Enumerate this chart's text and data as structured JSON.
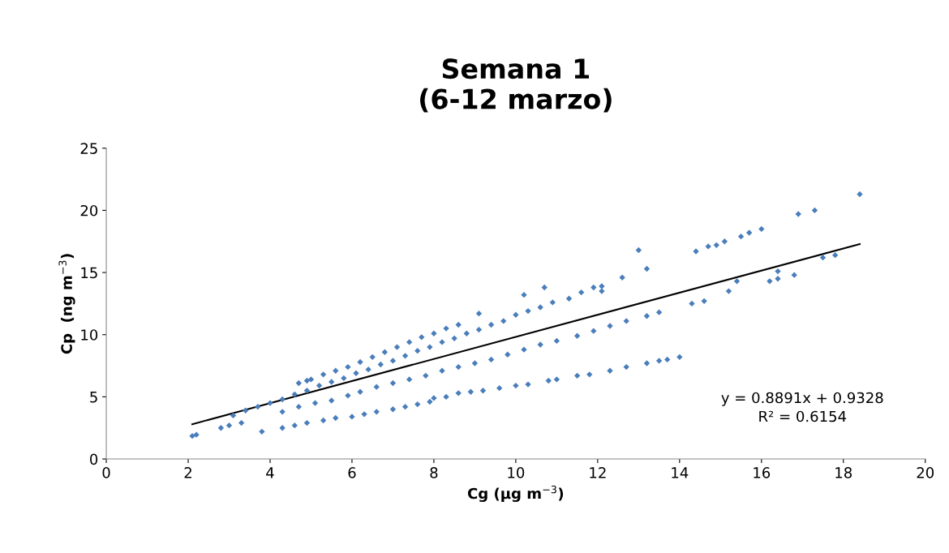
{
  "chart_data": {
    "type": "scatter",
    "title": "Semana 1\n(6-12 marzo)",
    "xlabel": "Cg (μg m$^{−3}$)",
    "ylabel": "Cp  (ng m$^{−3}$)",
    "xlim": [
      0,
      20
    ],
    "xticks": [
      0,
      2,
      4,
      6,
      8,
      10,
      12,
      14,
      16,
      18,
      20
    ],
    "ylim": [
      0,
      25
    ],
    "yticks": [
      0,
      5,
      10,
      15,
      20,
      25
    ],
    "grid": false,
    "marker": "diamond",
    "annotations": [
      "y = 0.8891x + 0.9328",
      "R² = 0.6154"
    ],
    "series": [
      {
        "color": "#4a7ebb",
        "x": [
          4.7,
          4.9,
          5.0,
          5.3,
          5.6,
          5.9,
          6.2,
          6.5,
          6.8,
          7.1,
          7.4,
          7.7,
          8.0,
          8.3,
          8.6,
          9.1,
          10.2,
          10.7,
          13.0,
          14.4,
          14.7,
          14.9,
          15.1,
          15.5,
          15.7,
          16.0,
          16.9,
          17.3,
          18.4
        ],
        "values": [
          6.1,
          6.3,
          6.4,
          6.8,
          7.1,
          7.4,
          7.8,
          8.2,
          8.6,
          9.0,
          9.4,
          9.8,
          10.1,
          10.5,
          10.8,
          11.7,
          13.2,
          13.8,
          16.8,
          16.7,
          17.1,
          17.2,
          17.5,
          17.9,
          18.2,
          18.5,
          19.7,
          20.0,
          21.3
        ]
      },
      {
        "color": "#4a7ebb",
        "x": [
          3.4,
          3.7,
          4.0,
          4.3,
          4.6,
          4.9,
          5.2,
          5.5,
          5.8,
          6.1,
          6.4,
          6.7,
          7.0,
          7.3,
          7.6,
          7.9,
          8.2,
          8.5,
          8.8,
          9.1,
          9.4,
          9.7,
          10.0,
          10.3,
          10.6,
          10.9,
          11.3,
          11.6,
          11.9,
          12.1,
          12.1,
          12.6,
          13.2
        ],
        "values": [
          3.9,
          4.2,
          4.5,
          4.8,
          5.2,
          5.5,
          5.9,
          6.2,
          6.5,
          6.9,
          7.2,
          7.6,
          7.9,
          8.3,
          8.7,
          9.0,
          9.4,
          9.7,
          10.1,
          10.4,
          10.8,
          11.1,
          11.6,
          11.9,
          12.2,
          12.6,
          12.9,
          13.4,
          13.8,
          13.9,
          13.5,
          14.6,
          15.3
        ]
      },
      {
        "color": "#4a7ebb",
        "x": [
          2.1,
          2.2,
          2.8,
          3.0,
          3.3,
          3.1,
          4.3,
          4.7,
          5.1,
          5.5,
          5.9,
          6.2,
          6.6,
          7.0,
          7.4,
          7.8,
          8.2,
          8.6,
          9.0,
          9.4,
          9.8,
          10.2,
          10.6,
          11.0,
          11.5,
          11.9,
          12.3,
          12.7,
          13.2,
          13.5,
          14.3,
          14.6,
          15.2,
          15.4,
          16.2,
          16.4,
          16.4,
          16.8,
          17.5,
          17.8
        ],
        "values": [
          1.85,
          1.95,
          2.5,
          2.7,
          2.9,
          3.5,
          3.8,
          4.2,
          4.5,
          4.7,
          5.1,
          5.4,
          5.8,
          6.1,
          6.4,
          6.7,
          7.1,
          7.4,
          7.7,
          8.0,
          8.4,
          8.8,
          9.2,
          9.5,
          9.9,
          10.3,
          10.7,
          11.1,
          11.5,
          11.8,
          12.5,
          12.7,
          13.5,
          14.3,
          14.3,
          14.5,
          15.1,
          14.8,
          16.2,
          16.4
        ]
      },
      {
        "color": "#4a7ebb",
        "x": [
          3.8,
          4.3,
          4.6,
          4.9,
          5.3,
          5.6,
          6.0,
          6.3,
          6.6,
          7.0,
          7.3,
          7.6,
          7.9,
          8.0,
          8.3,
          8.6,
          8.9,
          9.2,
          9.6,
          10.0,
          10.3,
          10.8,
          11.0,
          11.5,
          11.8,
          12.3,
          12.7,
          13.2,
          13.5,
          13.7,
          14.0
        ],
        "values": [
          2.2,
          2.5,
          2.7,
          2.9,
          3.1,
          3.3,
          3.4,
          3.6,
          3.8,
          4.0,
          4.2,
          4.4,
          4.6,
          4.9,
          5.0,
          5.3,
          5.4,
          5.5,
          5.7,
          5.9,
          6.0,
          6.3,
          6.4,
          6.7,
          6.8,
          7.1,
          7.4,
          7.7,
          7.9,
          8.0,
          8.2
        ]
      },
      {
        "type": "line",
        "color": "#000000",
        "marker": "none",
        "x": [
          2.1,
          18.4
        ],
        "values": [
          2.8,
          17.29
        ]
      }
    ]
  }
}
